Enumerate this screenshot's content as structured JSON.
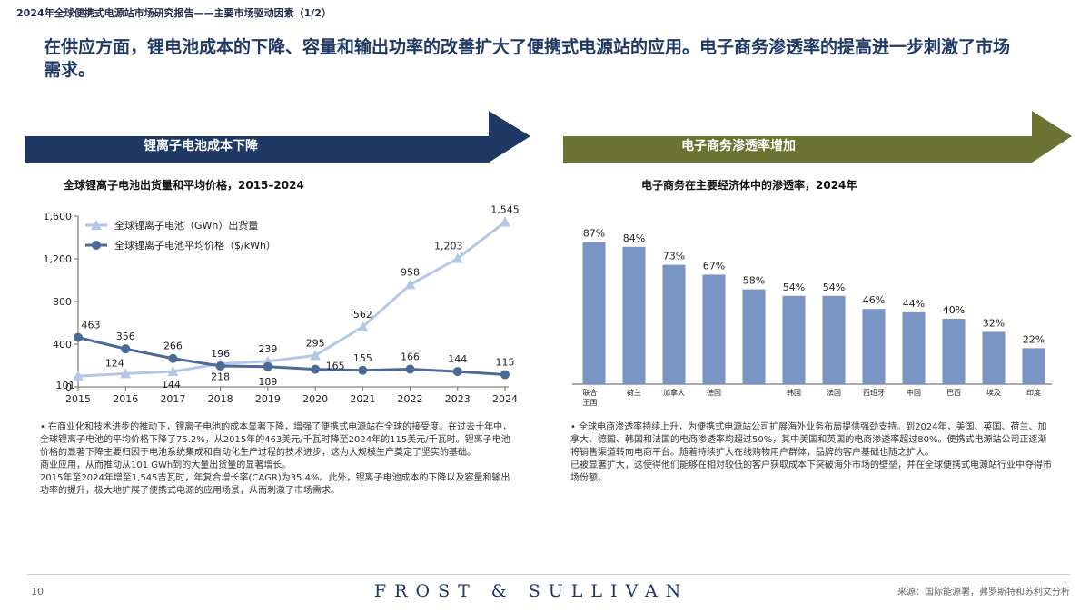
{
  "page": {
    "top_title": "2024年全球便携式电源站市场研究报告——主要市场驱动因素（1/2）",
    "headline": "在供应方面，锂电池成本的下降、容量和输出功率的改善扩大了便携式电源站的应用。电子商务渗透率的提高进一步刺激了市场需求。",
    "page_number": "10",
    "brand": "FROST & SULLIVAN",
    "source": "来源：国际能源署，弗罗斯特和苏利文分析",
    "colors": {
      "navy": "#1f3864",
      "olive": "#6b7332",
      "bar": "#7a95c4",
      "line_light": "#b4c7e7",
      "line_dark": "#4c6a98"
    }
  },
  "left": {
    "banner": "锂离子电池成本下降",
    "chart_title": "全球锂离子电池出货量和平均价格，2015–2024",
    "bullets": "• 在商业化和技术进步的推动下，锂离子电池的成本显著下降，增强了便携式电源站在全球的接受度。在过去十年中，全球锂离子电池的平均价格下降了75.2%，从2015年的463美元/千瓦时降至2024年的115美元/千瓦时。锂离子电池价格的显著下降主要归因于电池系统集成和自动化生产过程的技术进步，这为大规模生产奠定了坚实的基础。\n商业应用，从而推动从101 GWh到的大量出货量的显著增长。\n2015年至2024年增至1,545吉瓦时，年复合增长率(CAGR)为35.4%。此外，锂离子电池成本的下降以及容量和输出功率的提升，极大地扩展了便携式电源的应用场景，从而刺激了市场需求。"
  },
  "right": {
    "banner": "电子商务渗透率增加",
    "chart_title": "电子商务在主要经济体中的渗透率，2024年",
    "bullets": "• 全球电商渗透率持续上升，为便携式电源站公司扩展海外业务布局提供强劲支持。到2024年，美国、英国、荷兰、加拿大、德国、韩国和法国的电商渗透率均超过50%，其中美国和英国的电商渗透率超过80%。便携式电源站公司正逐渐将销售渠道转向电商平台。随着持续扩大在线购物用户群体，品牌的客户基础也随之扩大。\n已被显著扩大，这使得他们能够在相对较低的客户获取成本下突破海外市场的壁垒，并在全球便携式电源站行业中夺得市场份额。"
  },
  "chart_data": [
    {
      "type": "line",
      "x": [
        2015,
        2016,
        2017,
        2018,
        2019,
        2020,
        2021,
        2022,
        2023,
        2024
      ],
      "ylim": [
        0,
        1600
      ],
      "yticks": [
        0,
        400,
        800,
        1200,
        1600
      ],
      "ytick_labels": [
        "0",
        "400",
        "800",
        "1,200",
        "1,600"
      ],
      "legend_position": "top-left",
      "series": [
        {
          "name": "全球锂离子电池（GWh）出货量",
          "values": [
            101,
            124,
            144,
            218,
            239,
            295,
            562,
            958,
            1203,
            1545
          ],
          "labels": [
            "101",
            "124",
            "144",
            "218",
            "239",
            "295",
            "562",
            "958",
            "1,203",
            "1,545"
          ],
          "color": "#b4c7e7",
          "marker": "triangle"
        },
        {
          "name": "全球锂离子电池平均价格（$/kWh）",
          "values": [
            463,
            356,
            266,
            196,
            189,
            165,
            155,
            166,
            144,
            115
          ],
          "labels": [
            "463",
            "356",
            "266",
            "196",
            "189",
            "165",
            "155",
            "166",
            "144",
            "115"
          ],
          "color": "#4c6a98",
          "marker": "circle"
        }
      ]
    },
    {
      "type": "bar",
      "categories": [
        "联合王国",
        "荷兰",
        "加拿大",
        "德国",
        "",
        "韩国",
        "法国",
        "西班牙",
        "中国",
        "巴西",
        "埃及",
        "印度"
      ],
      "values": [
        87,
        84,
        73,
        67,
        58,
        54,
        54,
        46,
        44,
        40,
        32,
        22
      ],
      "labels": [
        "87%",
        "84%",
        "73%",
        "67%",
        "58%",
        "54%",
        "54%",
        "46%",
        "44%",
        "40%",
        "32%",
        "22%"
      ],
      "ylim": [
        0,
        100
      ],
      "color": "#7a95c4"
    }
  ]
}
